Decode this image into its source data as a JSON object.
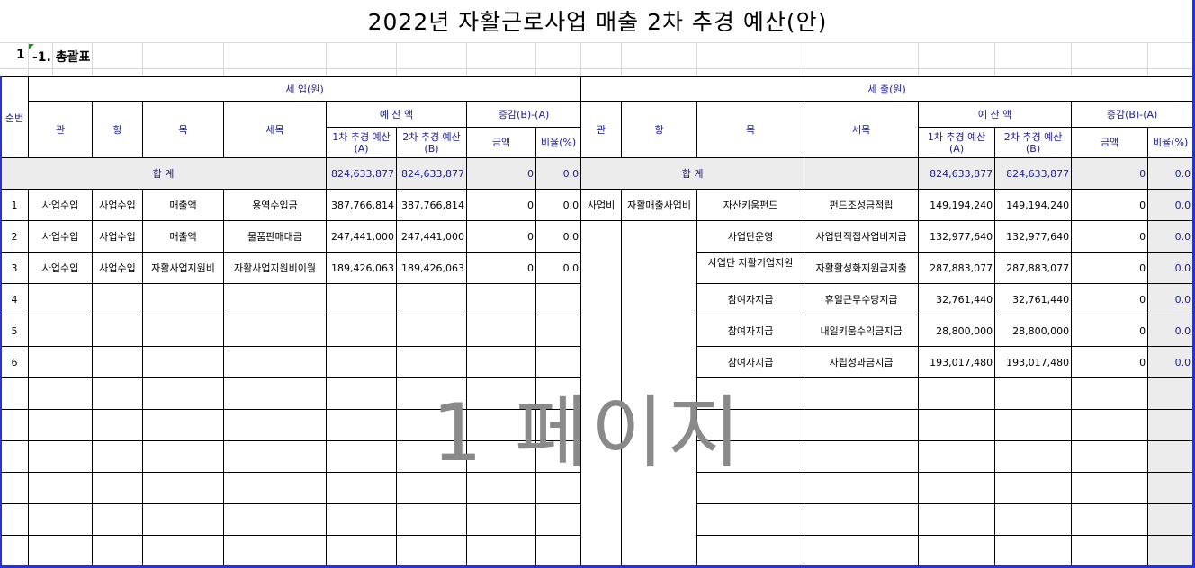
{
  "title": "2022년 자활근로사업 매출 2차 추경 예산(안)",
  "section": {
    "number": "1",
    "label": "-1. 총괄표"
  },
  "watermark": "1 페이지",
  "header": {
    "seq": "순번",
    "income": "세 입(원)",
    "expense": "세 출(원)",
    "gwan": "관",
    "hang": "항",
    "mok": "목",
    "semok": "세목",
    "budget": "예 산 액",
    "change": "증감(B)-(A)",
    "first": "1차 추경 예산\n(A)",
    "second": "2차 추경 예산\n(B)",
    "amount": "금액",
    "ratio": "비율(%)"
  },
  "total": {
    "label": "합 계",
    "income": {
      "a": "824,633,877",
      "b": "824,633,877",
      "amount": "0",
      "ratio": "0.0"
    },
    "expense": {
      "a": "824,633,877",
      "b": "824,633,877",
      "amount": "0",
      "ratio": "0.0"
    }
  },
  "income_rows": [
    {
      "seq": "1",
      "gwan": "사업수입",
      "hang": "사업수입",
      "mok": "매출액",
      "semok": "용역수입금",
      "a": "387,766,814",
      "b": "387,766,814",
      "amount": "0",
      "ratio": "0.0"
    },
    {
      "seq": "2",
      "gwan": "사업수입",
      "hang": "사업수입",
      "mok": "매출액",
      "semok": "물품판매대금",
      "a": "247,441,000",
      "b": "247,441,000",
      "amount": "0",
      "ratio": "0.0"
    },
    {
      "seq": "3",
      "gwan": "사업수입",
      "hang": "사업수입",
      "mok": "자활사업지원비",
      "semok": "자활사업지원비이월",
      "a": "189,426,063",
      "b": "189,426,063",
      "amount": "0",
      "ratio": "0.0"
    },
    {
      "seq": "4"
    },
    {
      "seq": "5"
    },
    {
      "seq": "6"
    }
  ],
  "expense_rows": [
    {
      "gwan": "사업비",
      "hang": "자활매출사업비",
      "mok": "자산키움펀드",
      "semok": "펀드조성금적립",
      "a": "149,194,240",
      "b": "149,194,240",
      "amount": "0",
      "ratio": "0.0"
    },
    {
      "mok": "사업단운영",
      "semok": "사업단직접사업비지급",
      "a": "132,977,640",
      "b": "132,977,640",
      "amount": "0",
      "ratio": "0.0"
    },
    {
      "mok": "사업단 자활기업지원",
      "semok": "자활활성화지원금지출",
      "a": "287,883,077",
      "b": "287,883,077",
      "amount": "0",
      "ratio": "0.0"
    },
    {
      "mok": "참여자지급",
      "semok": "휴일근무수당지급",
      "a": "32,761,440",
      "b": "32,761,440",
      "amount": "0",
      "ratio": "0.0"
    },
    {
      "mok": "참여자지급",
      "semok": "내일키움수익금지급",
      "a": "28,800,000",
      "b": "28,800,000",
      "amount": "0",
      "ratio": "0.0"
    },
    {
      "mok": "참여자지급",
      "semok": "자립성과금지급",
      "a": "193,017,480",
      "b": "193,017,480",
      "amount": "0",
      "ratio": "0.0"
    }
  ],
  "empty_row_count": 6,
  "colors": {
    "header_text": "#1a1aa0",
    "page_break": "#2233dd",
    "total_bg": "#ececec"
  }
}
